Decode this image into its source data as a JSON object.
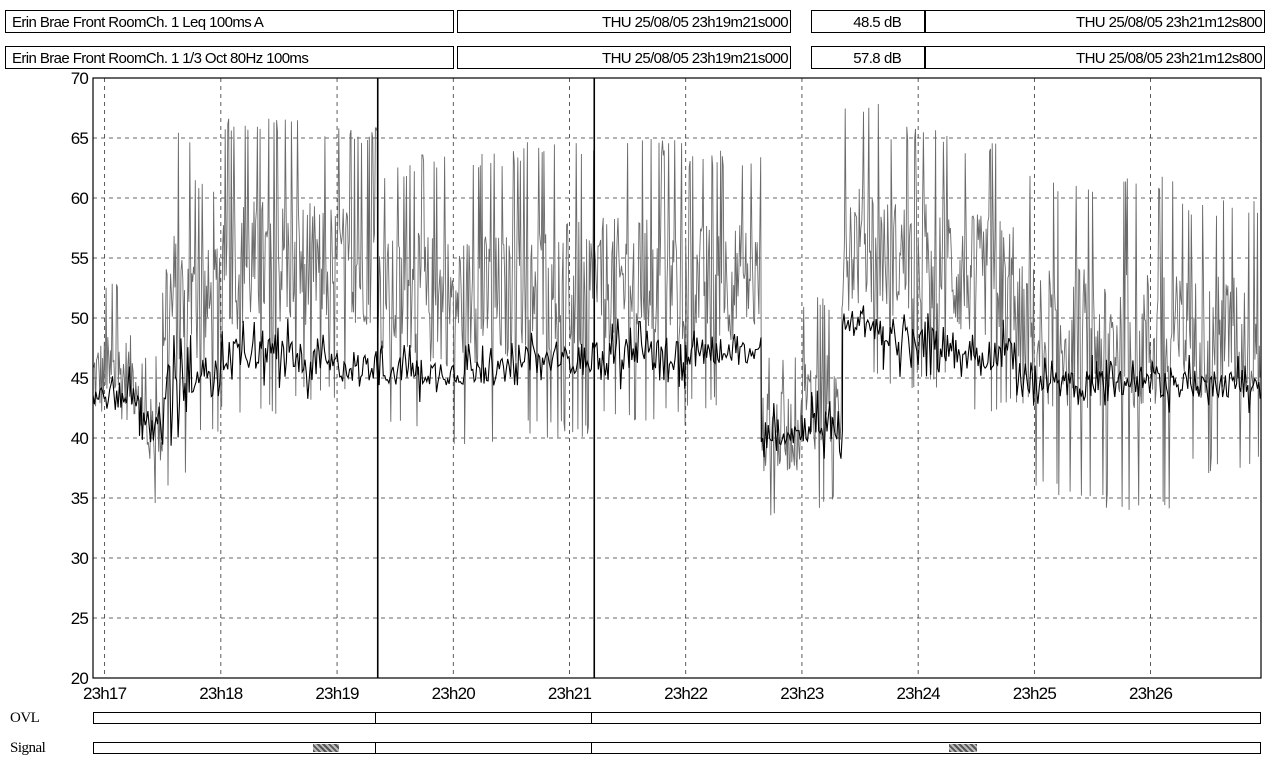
{
  "header": {
    "row1": {
      "channel": "Erin Brae Front RoomCh. 1 Leq 100ms A",
      "cursor1_time": "THU 25/08/05 23h19m21s000",
      "value": "48.5",
      "unit": "dB",
      "cursor2_time": "THU 25/08/05 23h21m12s800"
    },
    "row2": {
      "channel": "Erin Brae Front RoomCh. 1 1/3 Oct 80Hz 100ms",
      "cursor1_time": "THU 25/08/05 23h19m21s000",
      "value": "57.8",
      "unit": "dB",
      "cursor2_time": "THU 25/08/05 23h21m12s800"
    }
  },
  "status": {
    "ovl_label": "OVL",
    "signal_label": "Signal"
  },
  "chart_data": {
    "type": "line",
    "title": "",
    "xlabel": "",
    "ylabel": "",
    "ylim": [
      20,
      70
    ],
    "yticks": [
      20,
      25,
      30,
      35,
      40,
      45,
      50,
      55,
      60,
      65,
      70
    ],
    "xticks": [
      "23h17",
      "23h18",
      "23h19",
      "23h20",
      "23h21",
      "23h22",
      "23h23",
      "23h24",
      "23h25",
      "23h26"
    ],
    "xtick_minutes": [
      17,
      18,
      19,
      20,
      21,
      22,
      23,
      24,
      25,
      26
    ],
    "x_range_minutes": [
      16.9,
      26.95
    ],
    "grid": true,
    "cursors_minutes": [
      19.35,
      21.213
    ],
    "series": [
      {
        "name": "1/3 Oct 80Hz 100ms",
        "color": "#6a6a6a",
        "segments": [
          {
            "x0": 16.9,
            "x1": 17.3,
            "lo": 37,
            "hi": 53
          },
          {
            "x0": 17.3,
            "x1": 17.5,
            "lo": 34,
            "hi": 47
          },
          {
            "x0": 17.5,
            "x1": 17.75,
            "lo": 36,
            "hi": 66
          },
          {
            "x0": 17.75,
            "x1": 18.0,
            "lo": 40,
            "hi": 62
          },
          {
            "x0": 18.0,
            "x1": 18.7,
            "lo": 42,
            "hi": 67
          },
          {
            "x0": 18.7,
            "x1": 19.35,
            "lo": 43,
            "hi": 66
          },
          {
            "x0": 19.35,
            "x1": 19.7,
            "lo": 40,
            "hi": 63
          },
          {
            "x0": 19.7,
            "x1": 20.6,
            "lo": 39,
            "hi": 64
          },
          {
            "x0": 20.6,
            "x1": 21.2,
            "lo": 40,
            "hi": 65
          },
          {
            "x0": 21.2,
            "x1": 22.0,
            "lo": 41,
            "hi": 65
          },
          {
            "x0": 22.0,
            "x1": 22.65,
            "lo": 42,
            "hi": 64
          },
          {
            "x0": 22.65,
            "x1": 23.0,
            "lo": 33,
            "hi": 48
          },
          {
            "x0": 23.0,
            "x1": 23.35,
            "lo": 34,
            "hi": 52
          },
          {
            "x0": 23.35,
            "x1": 23.7,
            "lo": 44,
            "hi": 68
          },
          {
            "x0": 23.7,
            "x1": 24.3,
            "lo": 44,
            "hi": 66
          },
          {
            "x0": 24.3,
            "x1": 24.85,
            "lo": 42,
            "hi": 65
          },
          {
            "x0": 24.85,
            "x1": 25.5,
            "lo": 35,
            "hi": 62
          },
          {
            "x0": 25.5,
            "x1": 26.2,
            "lo": 34,
            "hi": 62
          },
          {
            "x0": 26.2,
            "x1": 26.95,
            "lo": 37,
            "hi": 60
          }
        ]
      },
      {
        "name": "Leq 100ms A",
        "color": "#000000",
        "segments": [
          {
            "x0": 16.9,
            "x1": 17.3,
            "lo": 41,
            "hi": 46
          },
          {
            "x0": 17.3,
            "x1": 17.5,
            "lo": 38,
            "hi": 44
          },
          {
            "x0": 17.5,
            "x1": 17.75,
            "lo": 39,
            "hi": 49
          },
          {
            "x0": 17.75,
            "x1": 18.0,
            "lo": 42,
            "hi": 47
          },
          {
            "x0": 18.0,
            "x1": 18.7,
            "lo": 44,
            "hi": 50
          },
          {
            "x0": 18.7,
            "x1": 19.35,
            "lo": 43,
            "hi": 49
          },
          {
            "x0": 19.35,
            "x1": 19.7,
            "lo": 43,
            "hi": 48
          },
          {
            "x0": 19.7,
            "x1": 20.6,
            "lo": 43,
            "hi": 48
          },
          {
            "x0": 20.6,
            "x1": 21.2,
            "lo": 44,
            "hi": 49
          },
          {
            "x0": 21.2,
            "x1": 22.0,
            "lo": 44,
            "hi": 50
          },
          {
            "x0": 22.0,
            "x1": 22.65,
            "lo": 45,
            "hi": 49
          },
          {
            "x0": 22.65,
            "x1": 23.0,
            "lo": 38,
            "hi": 43
          },
          {
            "x0": 23.0,
            "x1": 23.35,
            "lo": 38,
            "hi": 44
          },
          {
            "x0": 23.35,
            "x1": 23.7,
            "lo": 47,
            "hi": 52
          },
          {
            "x0": 23.7,
            "x1": 24.3,
            "lo": 45,
            "hi": 51
          },
          {
            "x0": 24.3,
            "x1": 24.85,
            "lo": 44,
            "hi": 50
          },
          {
            "x0": 24.85,
            "x1": 25.5,
            "lo": 42,
            "hi": 47
          },
          {
            "x0": 25.5,
            "x1": 26.2,
            "lo": 42,
            "hi": 47
          },
          {
            "x0": 26.2,
            "x1": 26.95,
            "lo": 42,
            "hi": 47
          }
        ]
      }
    ]
  }
}
